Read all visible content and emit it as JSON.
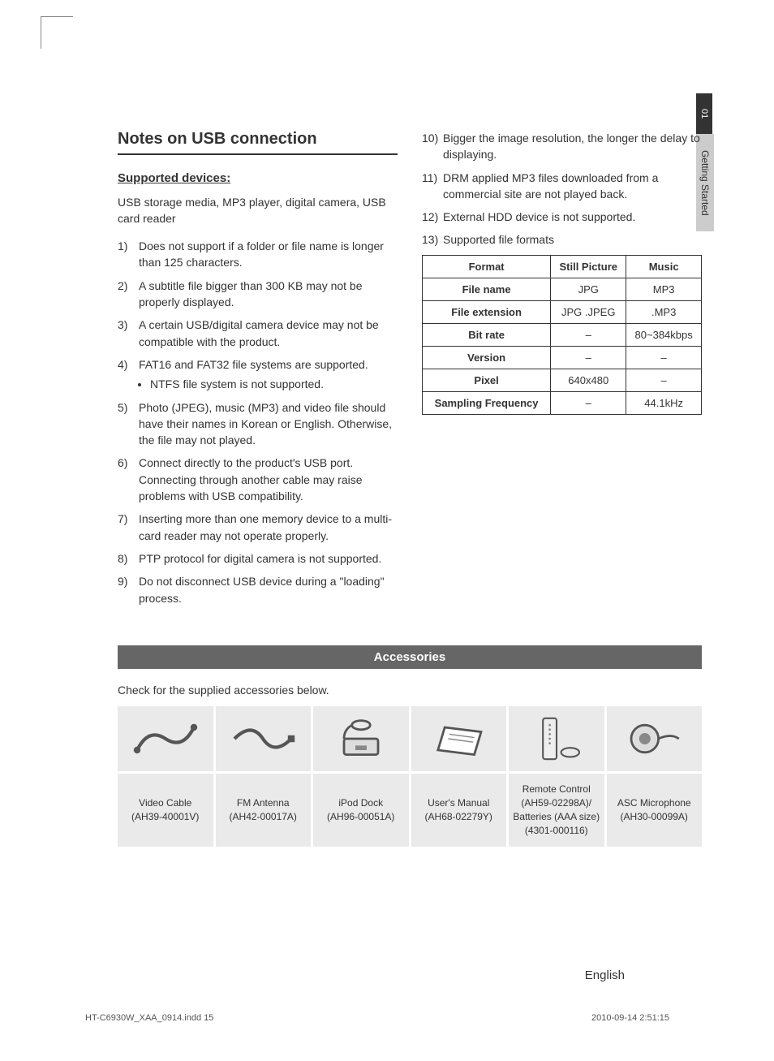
{
  "sideTab": {
    "chapter": "01",
    "section": "Getting Started"
  },
  "heading": "Notes on USB connection",
  "subheading": "Supported devices:",
  "intro": "USB storage media, MP3 player, digital camera, USB card reader",
  "leftNotes": [
    "Does not support if a folder or file name is longer than 125 characters.",
    "A subtitle file bigger than 300 KB may not be properly displayed.",
    "A certain USB/digital camera device may not be compatible with the product.",
    "FAT16 and FAT32 file systems are supported.",
    "Photo (JPEG), music (MP3) and video file should have their names in Korean or English. Otherwise, the file may not played.",
    "Connect directly to the product's USB port. Connecting through another cable may raise problems with USB compatibility.",
    "Inserting more than one memory device to a multi-card reader may not operate properly.",
    "PTP protocol for digital camera is not supported.",
    "Do not disconnect USB device during a \"loading\" process."
  ],
  "leftSub4": "NTFS file system is not supported.",
  "rightNotes": [
    "Bigger the image resolution, the longer the delay to displaying.",
    "DRM applied MP3 files downloaded from a commercial site are not played back.",
    "External HDD device is not supported.",
    "Supported file formats"
  ],
  "rightStart": 10,
  "formatTable": {
    "headers": [
      "Format",
      "Still Picture",
      "Music"
    ],
    "rows": [
      [
        "File name",
        "JPG",
        "MP3"
      ],
      [
        "File extension",
        "JPG .JPEG",
        ".MP3"
      ],
      [
        "Bit rate",
        "–",
        "80~384kbps"
      ],
      [
        "Version",
        "–",
        "–"
      ],
      [
        "Pixel",
        "640x480",
        "–"
      ],
      [
        "Sampling Frequency",
        "–",
        "44.1kHz"
      ]
    ]
  },
  "accessoriesBar": "Accessories",
  "accessoriesIntro": "Check for the supplied accessories below.",
  "accessories": [
    {
      "name": "video-cable",
      "label": "Video Cable\n(AH39-40001V)"
    },
    {
      "name": "fm-antenna",
      "label": "FM Antenna\n(AH42-00017A)"
    },
    {
      "name": "ipod-dock",
      "label": "iPod Dock\n(AH96-00051A)"
    },
    {
      "name": "users-manual",
      "label": "User's Manual\n(AH68-02279Y)"
    },
    {
      "name": "remote-control",
      "label": "Remote Control\n(AH59-02298A)/\nBatteries (AAA size)\n(4301-000116)"
    },
    {
      "name": "asc-microphone",
      "label": "ASC Microphone\n(AH30-00099A)"
    }
  ],
  "footer": {
    "language": "English",
    "left": "HT-C6930W_XAA_0914.indd   15",
    "right": "2010-09-14    2:51:15"
  },
  "colors": {
    "barBg": "#666666",
    "barFg": "#ffffff",
    "cellBg": "#eaeaea",
    "border": "#333333",
    "sideDark": "#333333",
    "sideLight": "#cccccc"
  }
}
